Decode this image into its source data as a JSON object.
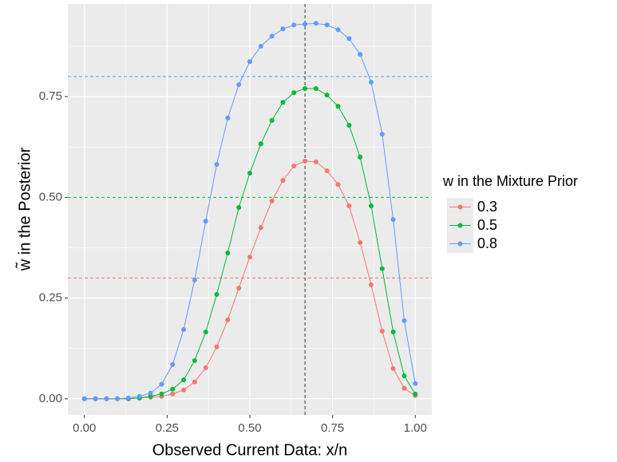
{
  "chart_data": {
    "type": "line",
    "x_label": "Observed Current Data: x/n",
    "y_label": "w̃ in the Posterior",
    "legend_title": "w in the Mixture Prior",
    "legend_position": "right",
    "grid": true,
    "x": [
      0,
      0.0333,
      0.0667,
      0.1,
      0.1333,
      0.1667,
      0.2,
      0.2333,
      0.2667,
      0.3,
      0.3333,
      0.3667,
      0.4,
      0.4333,
      0.4667,
      0.5,
      0.5333,
      0.5667,
      0.6,
      0.6333,
      0.6667,
      0.7,
      0.7333,
      0.7667,
      0.8,
      0.8333,
      0.8667,
      0.9,
      0.9333,
      0.9667,
      1
    ],
    "series": [
      {
        "name": "0.3",
        "color": "#f8766d",
        "values": [
          0,
          0,
          0,
          0,
          0,
          0.002,
          0.004,
          0.006,
          0.012,
          0.022,
          0.042,
          0.077,
          0.129,
          0.196,
          0.275,
          0.352,
          0.425,
          0.491,
          0.542,
          0.578,
          0.59,
          0.588,
          0.566,
          0.532,
          0.479,
          0.388,
          0.283,
          0.168,
          0.075,
          0.026,
          0.008
        ]
      },
      {
        "name": "0.5",
        "color": "#00ba38",
        "values": [
          0,
          0,
          0,
          0,
          0,
          0.002,
          0.006,
          0.012,
          0.024,
          0.047,
          0.095,
          0.166,
          0.259,
          0.362,
          0.475,
          0.56,
          0.633,
          0.691,
          0.736,
          0.76,
          0.77,
          0.77,
          0.754,
          0.726,
          0.679,
          0.6,
          0.479,
          0.323,
          0.166,
          0.057,
          0.012
        ]
      },
      {
        "name": "0.8",
        "color": "#619cff",
        "values": [
          0,
          0,
          0,
          0,
          0.002,
          0.006,
          0.014,
          0.036,
          0.085,
          0.172,
          0.295,
          0.441,
          0.582,
          0.697,
          0.78,
          0.837,
          0.875,
          0.9,
          0.918,
          0.928,
          0.93,
          0.932,
          0.928,
          0.916,
          0.894,
          0.855,
          0.786,
          0.657,
          0.445,
          0.194,
          0.038
        ]
      }
    ],
    "hlines": [
      {
        "value": 0.3,
        "color": "#f8766d"
      },
      {
        "value": 0.5,
        "color": "#00ba38"
      },
      {
        "value": 0.8,
        "color": "#619cff"
      }
    ],
    "vline": 0.6667,
    "xlim": [
      -0.05,
      1.05
    ],
    "ylim": [
      -0.04,
      0.98
    ],
    "xticks": [
      {
        "value": 0,
        "label": "0.00"
      },
      {
        "value": 0.25,
        "label": "0.25"
      },
      {
        "value": 0.5,
        "label": "0.50"
      },
      {
        "value": 0.75,
        "label": "0.75"
      },
      {
        "value": 1,
        "label": "1.00"
      }
    ],
    "yticks": [
      {
        "value": 0,
        "label": "0.00"
      },
      {
        "value": 0.25,
        "label": "0.25"
      },
      {
        "value": 0.5,
        "label": "0.50"
      },
      {
        "value": 0.75,
        "label": "0.75"
      }
    ]
  }
}
